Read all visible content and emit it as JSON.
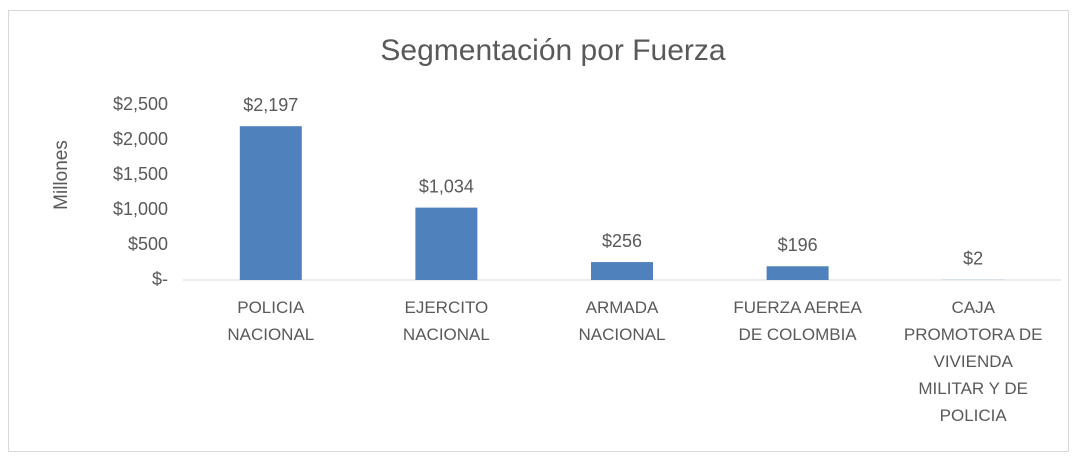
{
  "chart_data": {
    "type": "bar",
    "title": "Segmentación por Fuerza",
    "y_label": "Millones",
    "categories": [
      "POLICIA\nNACIONAL",
      "EJERCITO\nNACIONAL",
      "ARMADA\nNACIONAL",
      "FUERZA AEREA\nDE COLOMBIA",
      "CAJA\nPROMOTORA DE\nVIVIENDA\nMILITAR Y DE\nPOLICIA"
    ],
    "values": [
      2197,
      1034,
      256,
      196,
      2
    ],
    "value_labels": [
      "$2,197",
      "$1,034",
      "$256",
      "$196",
      "$2"
    ],
    "color": "#4f81bd",
    "ylim": [
      0,
      2500
    ],
    "yticks": [
      {
        "value": 0,
        "label": "$-"
      },
      {
        "value": 500,
        "label": "$500"
      },
      {
        "value": 1000,
        "label": "$1,000"
      },
      {
        "value": 1500,
        "label": "$1,500"
      },
      {
        "value": 2000,
        "label": "$2,000"
      },
      {
        "value": 2500,
        "label": "$2,500"
      }
    ],
    "grid": false
  }
}
